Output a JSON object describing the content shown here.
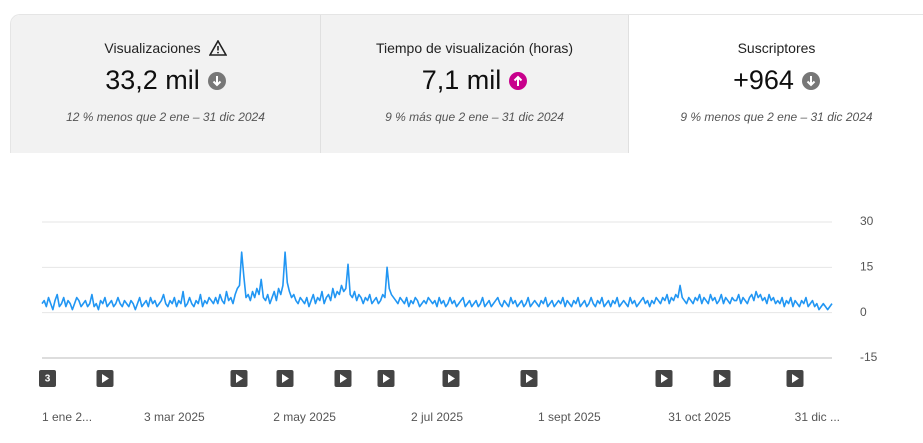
{
  "cards": [
    {
      "title": "Visualizaciones",
      "value": "33,2 mil",
      "comparison": "12 % menos que 2 ene – 31 dic 2024"
    },
    {
      "title": "Tiempo de visualización (horas)",
      "value": "7,1 mil",
      "comparison": "9 % más que 2 ene – 31 dic 2024"
    },
    {
      "title": "Suscriptores",
      "value": "+964",
      "comparison": "9 % menos que 2 ene – 31 dic 2024"
    }
  ],
  "video_group_label": "3",
  "chart_data": {
    "type": "line",
    "color": "#2196f3",
    "grid": true,
    "ylim": [
      -15,
      30
    ],
    "yticks": [
      30,
      15,
      0,
      -15
    ],
    "categories": [
      "1 ene 2...",
      null,
      null,
      null,
      null,
      null,
      null,
      null,
      null,
      null,
      null,
      null,
      null,
      null,
      null,
      null,
      null,
      null,
      null,
      null,
      null,
      null,
      null,
      null,
      null,
      null,
      null,
      null,
      null,
      null,
      null,
      null,
      null,
      null,
      null,
      null,
      null,
      null,
      null,
      null,
      null,
      null,
      null,
      null,
      null,
      null,
      null,
      null,
      null,
      null,
      null,
      null,
      null,
      null,
      null,
      null,
      null,
      null,
      null,
      null,
      null,
      "3 mar 2025",
      null,
      null,
      null,
      null,
      null,
      null,
      null,
      null,
      null,
      null,
      null,
      null,
      null,
      null,
      null,
      null,
      null,
      null,
      null,
      null,
      null,
      null,
      null,
      null,
      null,
      null,
      null,
      null,
      null,
      null,
      null,
      null,
      null,
      null,
      null,
      null,
      null,
      null,
      null,
      null,
      null,
      null,
      null,
      null,
      null,
      null,
      null,
      null,
      null,
      null,
      null,
      null,
      null,
      null,
      null,
      null,
      null,
      null,
      null,
      "2 may 2025",
      null,
      null,
      null,
      null,
      null,
      null,
      null,
      null,
      null,
      null,
      null,
      null,
      null,
      null,
      null,
      null,
      null,
      null,
      null,
      null,
      null,
      null,
      null,
      null,
      null,
      null,
      null,
      null,
      null,
      null,
      null,
      null,
      null,
      null,
      null,
      null,
      null,
      null,
      null,
      null,
      null,
      null,
      null,
      null,
      null,
      null,
      null,
      null,
      null,
      null,
      null,
      null,
      null,
      null,
      null,
      null,
      null,
      null,
      null,
      null,
      "2 jul 2025",
      null,
      null,
      null,
      null,
      null,
      null,
      null,
      null,
      null,
      null,
      null,
      null,
      null,
      null,
      null,
      null,
      null,
      null,
      null,
      null,
      null,
      null,
      null,
      null,
      null,
      null,
      null,
      null,
      null,
      null,
      null,
      null,
      null,
      null,
      null,
      null,
      null,
      null,
      null,
      null,
      null,
      null,
      null,
      null,
      null,
      null,
      null,
      null,
      null,
      null,
      null,
      null,
      null,
      null,
      null,
      null,
      null,
      null,
      null,
      null,
      "1 sept 2025",
      null,
      null,
      null,
      null,
      null,
      null,
      null,
      null,
      null,
      null,
      null,
      null,
      null,
      null,
      null,
      null,
      null,
      null,
      null,
      null,
      null,
      null,
      null,
      null,
      null,
      null,
      null,
      null,
      null,
      null,
      null,
      null,
      null,
      null,
      null,
      null,
      null,
      null,
      null,
      null,
      null,
      null,
      null,
      null,
      null,
      null,
      null,
      null,
      null,
      null,
      null,
      null,
      null,
      null,
      null,
      null,
      null,
      null,
      null,
      "31 oct 2025",
      null,
      null,
      null,
      null,
      null,
      null,
      null,
      null,
      null,
      null,
      null,
      null,
      null,
      null,
      null,
      null,
      null,
      null,
      null,
      null,
      null,
      null,
      null,
      null,
      null,
      null,
      null,
      null,
      null,
      null,
      null,
      null,
      null,
      null,
      null,
      null,
      null,
      null,
      null,
      null,
      null,
      null,
      null,
      null,
      null,
      null,
      null,
      null,
      null,
      null,
      null,
      null,
      null,
      null,
      null,
      null,
      null,
      null,
      null,
      null,
      "31 dic ..."
    ],
    "values": [
      3,
      4,
      2,
      5,
      3,
      1,
      4,
      6,
      2,
      3,
      5,
      2,
      4,
      3,
      1,
      3,
      5,
      4,
      2,
      3,
      4,
      2,
      3,
      6,
      2,
      3,
      1,
      4,
      3,
      5,
      2,
      3,
      4,
      2,
      3,
      5,
      3,
      2,
      4,
      3,
      2,
      4,
      3,
      1,
      3,
      5,
      2,
      3,
      4,
      2,
      5,
      3,
      4,
      2,
      3,
      4,
      6,
      3,
      2,
      4,
      3,
      5,
      2,
      4,
      3,
      7,
      2,
      3,
      5,
      3,
      2,
      4,
      3,
      6,
      2,
      4,
      3,
      5,
      4,
      3,
      5,
      3,
      6,
      4,
      3,
      7,
      4,
      5,
      3,
      6,
      8,
      9,
      20,
      12,
      5,
      6,
      4,
      7,
      5,
      8,
      6,
      11,
      5,
      4,
      6,
      3,
      5,
      7,
      4,
      8,
      6,
      9,
      20,
      10,
      7,
      5,
      6,
      4,
      3,
      5,
      4,
      3,
      5,
      2,
      4,
      6,
      3,
      5,
      4,
      7,
      3,
      5,
      6,
      4,
      8,
      5,
      7,
      6,
      9,
      7,
      8,
      16,
      6,
      5,
      7,
      4,
      6,
      5,
      3,
      5,
      4,
      6,
      3,
      4,
      5,
      3,
      4,
      6,
      5,
      15,
      8,
      6,
      5,
      4,
      3,
      5,
      4,
      3,
      5,
      2,
      4,
      3,
      5,
      4,
      2,
      3,
      4,
      3,
      5,
      4,
      3,
      4,
      2,
      5,
      3,
      4,
      2,
      3,
      5,
      3,
      4,
      2,
      3,
      4,
      5,
      2,
      3,
      4,
      2,
      3,
      4,
      2,
      3,
      5,
      2,
      3,
      4,
      2,
      3,
      4,
      5,
      3,
      2,
      4,
      3,
      2,
      5,
      3,
      4,
      2,
      3,
      4,
      2,
      3,
      5,
      2,
      3,
      4,
      3,
      2,
      4,
      3,
      5,
      2,
      3,
      4,
      2,
      3,
      4,
      3,
      5,
      2,
      4,
      3,
      2,
      4,
      3,
      5,
      2,
      3,
      4,
      2,
      3,
      5,
      3,
      2,
      4,
      3,
      5,
      2,
      3,
      4,
      2,
      4,
      3,
      5,
      2,
      3,
      4,
      3,
      2,
      5,
      3,
      4,
      2,
      3,
      4,
      5,
      3,
      4,
      2,
      4,
      3,
      5,
      4,
      3,
      5,
      4,
      6,
      3,
      5,
      4,
      6,
      5,
      9,
      5,
      4,
      3,
      5,
      4,
      3,
      5,
      4,
      6,
      3,
      5,
      4,
      3,
      6,
      4,
      5,
      3,
      4,
      6,
      3,
      5,
      4,
      3,
      5,
      4,
      4,
      6,
      3,
      5,
      4,
      3,
      5,
      6,
      4,
      7,
      5,
      6,
      4,
      5,
      3,
      6,
      4,
      5,
      3,
      4,
      3,
      5,
      2,
      4,
      3,
      5,
      2,
      4,
      3,
      2,
      4,
      3,
      5,
      2,
      3,
      4,
      2,
      3,
      1,
      2,
      3,
      2,
      1,
      2,
      3
    ]
  }
}
